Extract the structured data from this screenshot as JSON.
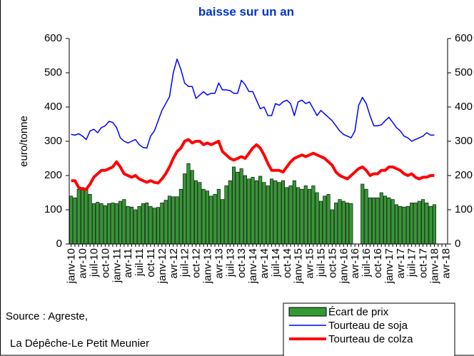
{
  "chart_data": {
    "type": "bar-line",
    "title": "baisse sur un an",
    "ylabel": "euro/tonne",
    "source": [
      "Source : Agreste,",
      "La Dépêche-Le Petit Meunier"
    ],
    "categories": [
      "janv-10",
      null,
      null,
      "avr-10",
      null,
      null,
      "juil-10",
      null,
      null,
      "oct-10",
      null,
      null,
      "janv-11",
      null,
      null,
      "avr-11",
      null,
      null,
      "juil-11",
      null,
      null,
      "oct-11",
      null,
      null,
      "janv-12",
      null,
      null,
      "avr-12",
      null,
      null,
      "juil-12",
      null,
      null,
      "oct-12",
      null,
      null,
      "janv-13",
      null,
      null,
      "avr-13",
      null,
      null,
      "juil-13",
      null,
      null,
      "oct-13",
      null,
      null,
      "janv-14",
      null,
      null,
      "avr-14",
      null,
      null,
      "juil-14",
      null,
      null,
      "oct-14",
      null,
      null,
      "janv-15",
      null,
      null,
      "avr-15",
      null,
      null,
      "juil-15",
      null,
      null,
      "oct-15",
      null,
      null,
      "janv-16",
      null,
      null,
      "avr-16",
      null,
      null,
      "juil-16",
      null,
      null,
      "oct-16",
      null,
      null,
      "janv-17",
      null,
      null,
      "avr-17",
      null,
      null,
      "juil-17",
      null,
      null,
      "oct-17",
      null,
      null,
      "janv-18",
      null,
      null,
      "avr-18"
    ],
    "series": [
      {
        "name": "Écart de prix",
        "kind": "bar",
        "color": "#339933",
        "values": [
          140,
          135,
          160,
          165,
          160,
          145,
          118,
          122,
          118,
          112,
          118,
          120,
          118,
          125,
          130,
          110,
          108,
          100,
          110,
          118,
          120,
          110,
          105,
          107,
          120,
          128,
          140,
          138,
          138,
          160,
          205,
          235,
          215,
          185,
          180,
          160,
          155,
          140,
          145,
          160,
          130,
          170,
          185,
          225,
          210,
          220,
          200,
          190,
          195,
          185,
          198,
          180,
          170,
          190,
          185,
          180,
          185,
          165,
          170,
          185,
          165,
          160,
          170,
          160,
          170,
          150,
          125,
          140,
          145,
          100,
          120,
          130,
          125,
          120,
          118,
          null,
          null,
          175,
          160,
          135,
          135,
          135,
          150,
          140,
          135,
          130,
          115,
          110,
          108,
          110,
          120,
          120,
          125,
          130,
          120,
          110,
          115,
          null,
          null,
          null
        ]
      },
      {
        "name": "Tourteau de soja",
        "kind": "line",
        "color": "#0000ff",
        "values": [
          320,
          318,
          322,
          315,
          305,
          330,
          335,
          325,
          340,
          345,
          358,
          355,
          340,
          310,
          300,
          295,
          300,
          305,
          290,
          282,
          280,
          315,
          330,
          360,
          390,
          410,
          430,
          500,
          540,
          510,
          470,
          460,
          460,
          425,
          435,
          445,
          435,
          440,
          440,
          470,
          450,
          450,
          448,
          440,
          440,
          478,
          465,
          445,
          445,
          420,
          395,
          400,
          375,
          375,
          410,
          405,
          415,
          420,
          410,
          375,
          415,
          420,
          410,
          415,
          395,
          375,
          390,
          380,
          370,
          360,
          345,
          330,
          320,
          315,
          310,
          330,
          405,
          428,
          410,
          375,
          345,
          345,
          348,
          360,
          370,
          355,
          340,
          330,
          315,
          310,
          300,
          305,
          310,
          315,
          325,
          318,
          318,
          null,
          null,
          null
        ]
      },
      {
        "name": "Tourteau de colza",
        "kind": "line",
        "color": "#ff0000",
        "values": [
          185,
          185,
          165,
          160,
          160,
          175,
          195,
          205,
          215,
          215,
          220,
          225,
          240,
          225,
          205,
          200,
          195,
          200,
          190,
          185,
          180,
          185,
          180,
          178,
          190,
          205,
          225,
          250,
          270,
          280,
          300,
          305,
          295,
          300,
          300,
          290,
          295,
          290,
          295,
          300,
          270,
          260,
          250,
          245,
          250,
          255,
          250,
          265,
          280,
          290,
          280,
          260,
          235,
          215,
          215,
          215,
          210,
          225,
          240,
          250,
          255,
          260,
          255,
          260,
          265,
          260,
          255,
          250,
          240,
          230,
          210,
          200,
          195,
          190,
          200,
          210,
          220,
          225,
          215,
          200,
          205,
          205,
          215,
          215,
          225,
          225,
          220,
          215,
          205,
          200,
          205,
          195,
          190,
          195,
          195,
          200,
          200,
          null,
          null,
          null
        ]
      }
    ],
    "ylim": [
      0,
      600
    ],
    "yticks": [
      0,
      100,
      200,
      300,
      400,
      500,
      600
    ],
    "y2lim": [
      0,
      600
    ],
    "y2ticks": [
      0,
      100,
      200,
      300,
      400,
      500,
      600
    ],
    "grid": false
  }
}
